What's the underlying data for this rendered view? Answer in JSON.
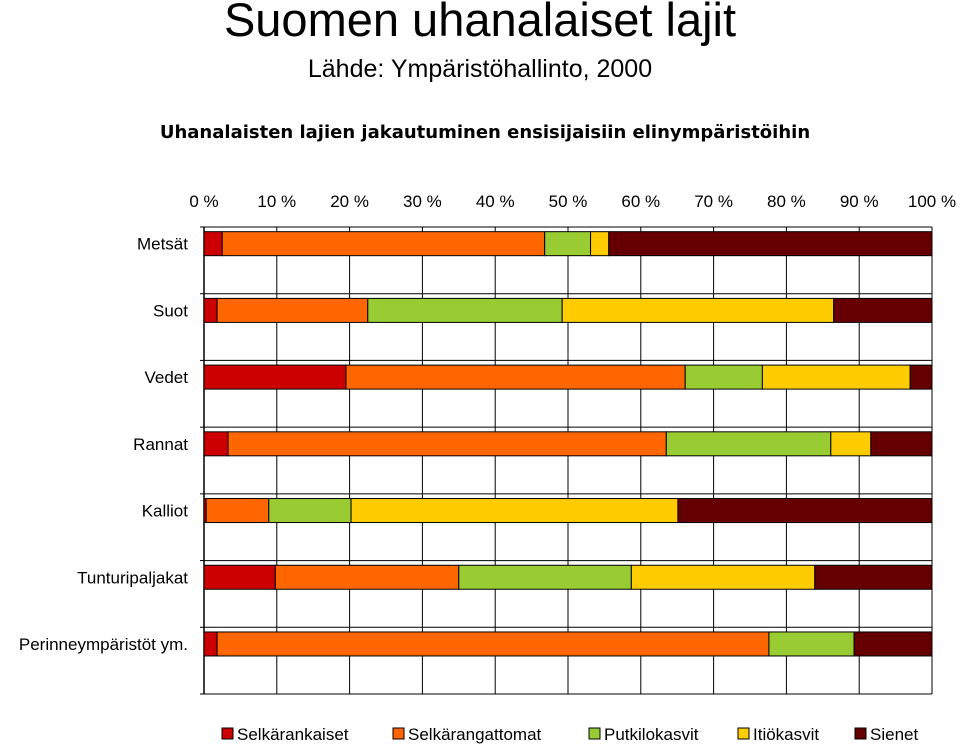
{
  "title": "Suomen uhanalaiset lajit",
  "subtitle": "Lähde: Ympäristöhallinto, 2000",
  "chart_data": {
    "type": "bar",
    "orientation": "horizontal",
    "stacked": "percent",
    "title": "Uhanalaisten lajien jakautuminen ensisijaisiin elinympäristöihin",
    "x_ticks": [
      "0 %",
      "10 %",
      "20 %",
      "30 %",
      "40 %",
      "50 %",
      "60 %",
      "70 %",
      "80 %",
      "90 %",
      "100 %"
    ],
    "xlim": [
      0,
      100
    ],
    "grid": true,
    "legend_position": "bottom",
    "categories": [
      "Metsät",
      "Suot",
      "Vedet",
      "Rannat",
      "Kalliot",
      "Tunturipaljakat",
      "Perinneympäristöt ym."
    ],
    "series": [
      {
        "name": "Selkärankaiset",
        "color": "#cc0000",
        "values": [
          2.5,
          1.8,
          19.5,
          3.3,
          0.3,
          9.8,
          1.8
        ]
      },
      {
        "name": "Selkärangattomat",
        "color": "#ff6600",
        "values": [
          44.3,
          20.7,
          46.6,
          60.2,
          8.6,
          25.2,
          75.8
        ]
      },
      {
        "name": "Putkilokasvit",
        "color": "#99cc33",
        "values": [
          6.3,
          26.7,
          10.6,
          22.6,
          11.3,
          23.7,
          11.7
        ]
      },
      {
        "name": "Itiökasvit",
        "color": "#ffcc00",
        "values": [
          2.5,
          37.3,
          20.3,
          5.5,
          44.9,
          25.2,
          0
        ]
      },
      {
        "name": "Sienet",
        "color": "#660000",
        "values": [
          44.4,
          13.5,
          3.0,
          8.4,
          34.9,
          16.1,
          10.7
        ]
      }
    ]
  }
}
